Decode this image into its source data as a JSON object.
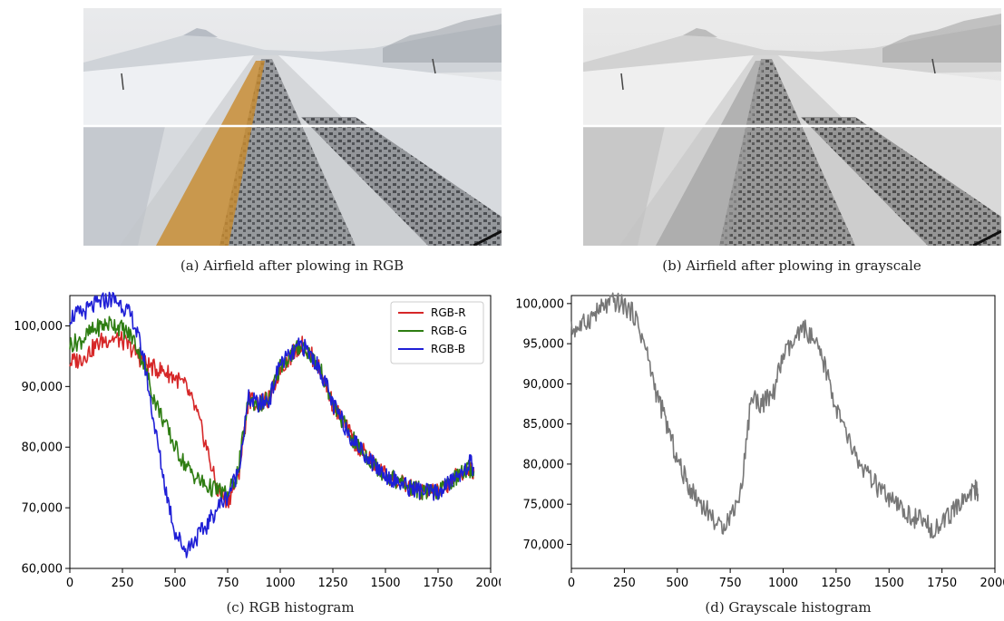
{
  "captions": {
    "a": "(a) Airfield after plowing in RGB",
    "b": "(b) Airfield after plowing in grayscale",
    "c": "(c) RGB histogram",
    "d": "(d) Grayscale histogram"
  },
  "colors": {
    "rgb_r": "#d62728",
    "rgb_g": "#2e7d12",
    "rgb_b": "#1f1fd6",
    "gray": "#777777",
    "road_stain": "#c8892c"
  },
  "chart_data": [
    {
      "type": "line",
      "xlim": [
        0,
        2000
      ],
      "ylim": [
        60000,
        105000
      ],
      "xticks": [
        0,
        250,
        500,
        750,
        1000,
        1250,
        1500,
        1750,
        2000
      ],
      "xtick_labels": [
        "0",
        "250",
        "500",
        "750",
        "1000",
        "1250",
        "1500",
        "1750",
        "2000"
      ],
      "yticks": [
        60000,
        70000,
        80000,
        90000,
        100000
      ],
      "ytick_labels": [
        "60,000",
        "70,000",
        "80,000",
        "90,000",
        "100,000"
      ],
      "legend_position": "top-right",
      "grid": false,
      "series": [
        {
          "name": "RGB-R",
          "color": "#d62728",
          "x": [
            0,
            50,
            100,
            150,
            200,
            250,
            300,
            350,
            400,
            450,
            500,
            550,
            600,
            650,
            700,
            750,
            800,
            850,
            900,
            950,
            1000,
            1050,
            1100,
            1150,
            1200,
            1250,
            1300,
            1350,
            1400,
            1450,
            1500,
            1550,
            1600,
            1650,
            1700,
            1750,
            1800,
            1850,
            1900,
            1920
          ],
          "y": [
            94000,
            94500,
            96000,
            97500,
            98000,
            97500,
            96000,
            94000,
            93000,
            92500,
            91500,
            90000,
            86000,
            80000,
            73000,
            71000,
            75000,
            88000,
            87000,
            88000,
            93000,
            95000,
            97000,
            95000,
            92000,
            87000,
            84000,
            81000,
            79000,
            77000,
            75500,
            74500,
            73500,
            73000,
            72500,
            72500,
            74000,
            75500,
            76500,
            76000
          ]
        },
        {
          "name": "RGB-G",
          "color": "#2e7d12",
          "x": [
            0,
            50,
            100,
            150,
            200,
            250,
            300,
            350,
            400,
            450,
            500,
            550,
            600,
            650,
            700,
            750,
            800,
            850,
            900,
            950,
            1000,
            1050,
            1100,
            1150,
            1200,
            1250,
            1300,
            1350,
            1400,
            1450,
            1500,
            1550,
            1600,
            1650,
            1700,
            1750,
            1800,
            1850,
            1900,
            1920
          ],
          "y": [
            97000,
            97500,
            99000,
            100000,
            100500,
            99500,
            98000,
            94000,
            88000,
            84000,
            80000,
            77000,
            75000,
            73500,
            73000,
            72000,
            76000,
            88000,
            87000,
            88000,
            93500,
            95000,
            97000,
            95000,
            92000,
            87000,
            84000,
            81000,
            79000,
            77000,
            75500,
            74500,
            73500,
            73000,
            72500,
            72500,
            74000,
            75500,
            76500,
            76000
          ]
        },
        {
          "name": "RGB-B",
          "color": "#1f1fd6",
          "x": [
            0,
            50,
            100,
            150,
            200,
            250,
            300,
            350,
            400,
            450,
            500,
            550,
            600,
            650,
            700,
            750,
            800,
            850,
            900,
            950,
            1000,
            1050,
            1100,
            1150,
            1200,
            1250,
            1300,
            1350,
            1400,
            1450,
            1500,
            1550,
            1600,
            1650,
            1700,
            1750,
            1800,
            1850,
            1900,
            1920
          ],
          "y": [
            101500,
            102000,
            103000,
            104000,
            104500,
            103500,
            101000,
            95000,
            84000,
            74000,
            66000,
            63000,
            65000,
            67000,
            70000,
            72000,
            76000,
            88000,
            87000,
            88000,
            94000,
            95000,
            97000,
            95000,
            92000,
            87000,
            84000,
            81000,
            79000,
            77000,
            75500,
            74500,
            73500,
            73000,
            72500,
            72500,
            74000,
            75500,
            77500,
            76500
          ]
        }
      ]
    },
    {
      "type": "line",
      "xlim": [
        0,
        2000
      ],
      "ylim": [
        67000,
        101000
      ],
      "xticks": [
        0,
        250,
        500,
        750,
        1000,
        1250,
        1500,
        1750,
        2000
      ],
      "xtick_labels": [
        "0",
        "250",
        "500",
        "750",
        "1000",
        "1250",
        "1500",
        "1750",
        "2000"
      ],
      "yticks": [
        70000,
        75000,
        80000,
        85000,
        90000,
        95000,
        100000
      ],
      "ytick_labels": [
        "70,000",
        "75,000",
        "80,000",
        "85,000",
        "90,000",
        "95,000",
        "100,000"
      ],
      "grid": false,
      "series": [
        {
          "color": "#777777",
          "x": [
            0,
            50,
            100,
            150,
            200,
            250,
            300,
            350,
            400,
            450,
            500,
            550,
            600,
            650,
            700,
            750,
            800,
            850,
            900,
            950,
            1000,
            1050,
            1100,
            1150,
            1200,
            1250,
            1300,
            1350,
            1400,
            1450,
            1500,
            1550,
            1600,
            1650,
            1700,
            1750,
            1800,
            1850,
            1900,
            1920
          ],
          "y": [
            96700,
            97200,
            98500,
            99500,
            100200,
            99800,
            98500,
            94500,
            89000,
            85000,
            80500,
            77500,
            75500,
            74000,
            72000,
            73500,
            76500,
            88500,
            87500,
            88500,
            93500,
            95000,
            97000,
            95000,
            92000,
            87000,
            83500,
            80500,
            78500,
            77000,
            75500,
            74500,
            73500,
            73000,
            72000,
            72500,
            74000,
            75500,
            77000,
            76300
          ]
        }
      ]
    }
  ]
}
